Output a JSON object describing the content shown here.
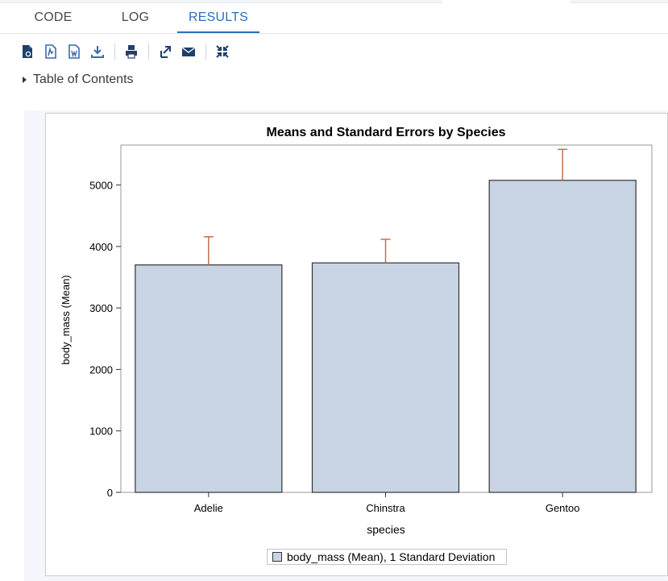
{
  "tabs": [
    {
      "label": "CODE"
    },
    {
      "label": "LOG"
    },
    {
      "label": "RESULTS",
      "active": true
    }
  ],
  "toolbar": {
    "icons": [
      "export-html-icon",
      "export-pdf-icon",
      "export-word-icon",
      "download-icon",
      "print-icon",
      "open-in-new-window-icon",
      "email-icon",
      "collapse-icon"
    ]
  },
  "toc": {
    "label": "Table of Contents"
  },
  "colors": {
    "accent": "#2a6fb8",
    "bar_fill": "#c8d4e4",
    "bar_stroke": "#333333",
    "error_bar": "#c0704f"
  },
  "chart_data": {
    "type": "bar",
    "title": "Means and Standard Errors by Species",
    "xlabel": "species",
    "ylabel": "body_mass (Mean)",
    "categories": [
      "Adelie",
      "Chinstra",
      "Gentoo"
    ],
    "series": [
      {
        "name": "body_mass (Mean), 1 Standard Deviation",
        "values": [
          3700,
          3733,
          5076
        ],
        "error": [
          458,
          384,
          504
        ]
      }
    ],
    "ylim": [
      0,
      5650
    ],
    "yticks": [
      0,
      1000,
      2000,
      3000,
      4000,
      5000
    ],
    "grid": false,
    "legend_position": "bottom"
  }
}
